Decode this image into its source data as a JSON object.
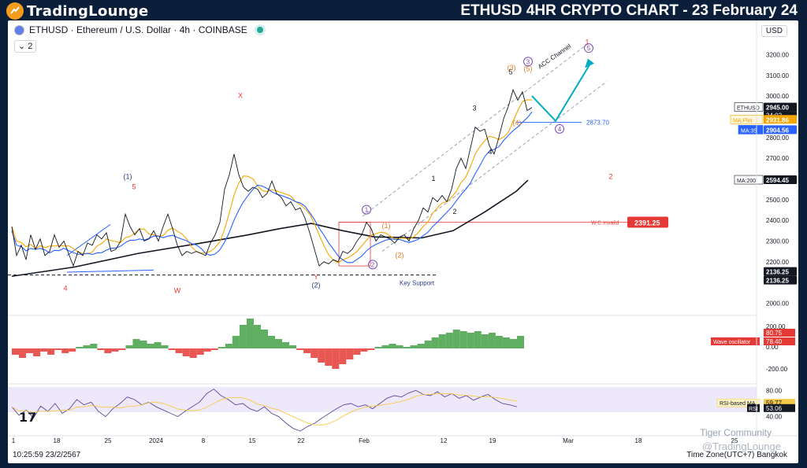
{
  "brand": {
    "name": "TradingLounge"
  },
  "headline": "ETHUSD 4HR CRYPTO CHART - 23 February 24",
  "legend": {
    "symbol": "ETHUSD · Ethereum / U.S. Dollar · 4h · COINBASE",
    "indicator_count": "2"
  },
  "currency_button": "USD",
  "bottom_time": "10:25:59 23/2/2567",
  "timezone": "Time Zone(UTC+7) Bangkok",
  "watermarks": [
    "Tiger Community",
    "@TradingLounge"
  ],
  "chart_data": {
    "type": "line",
    "x_ticks": [
      "1",
      "18",
      "25",
      "2024",
      "8",
      "15",
      "22",
      "Feb",
      "12",
      "19",
      "Mar",
      "18",
      "25"
    ],
    "price_axis": {
      "labels": [
        "3200.00",
        "3100.00",
        "3000.00",
        "2800.00",
        "2700.00",
        "2600.00",
        "2500.00",
        "2400.00",
        "2300.00",
        "2200.00",
        "2000.00"
      ],
      "range": [
        1960,
        3270
      ]
    },
    "price_tags": [
      {
        "name": "ETHUSD",
        "value": "2945.00",
        "sub": "34:02",
        "color": "#131722"
      },
      {
        "name": "MA:Plot",
        "value": "2931.86",
        "color": "#f7a600"
      },
      {
        "name": "MA:35",
        "value": "2904.56",
        "color": "#2962ff"
      },
      {
        "name": "MA:200",
        "value": "2594.45",
        "color": "#131722"
      },
      {
        "name": "",
        "value": "2136.25",
        "color": "#131722"
      },
      {
        "name": "",
        "value": "2136.25",
        "color": "#131722"
      }
    ],
    "series": [
      {
        "name": "MA:Plot",
        "color": "#f7a600"
      },
      {
        "name": "MA:35",
        "color": "#2962ff"
      },
      {
        "name": "MA:200",
        "color": "#131722"
      }
    ],
    "price_path": [
      [
        0,
        2370
      ],
      [
        6,
        2230
      ],
      [
        12,
        2280
      ],
      [
        18,
        2210
      ],
      [
        24,
        2330
      ],
      [
        30,
        2260
      ],
      [
        36,
        2310
      ],
      [
        42,
        2230
      ],
      [
        48,
        2250
      ],
      [
        54,
        2330
      ],
      [
        60,
        2270
      ],
      [
        66,
        2300
      ],
      [
        72,
        2240
      ],
      [
        78,
        2180
      ],
      [
        84,
        2250
      ],
      [
        90,
        2230
      ],
      [
        96,
        2290
      ],
      [
        102,
        2280
      ],
      [
        108,
        2330
      ],
      [
        114,
        2310
      ],
      [
        120,
        2340
      ],
      [
        126,
        2250
      ],
      [
        132,
        2260
      ],
      [
        138,
        2300
      ],
      [
        144,
        2430
      ],
      [
        150,
        2370
      ],
      [
        156,
        2330
      ],
      [
        162,
        2360
      ],
      [
        168,
        2300
      ],
      [
        174,
        2310
      ],
      [
        180,
        2350
      ],
      [
        186,
        2300
      ],
      [
        192,
        2370
      ],
      [
        198,
        2430
      ],
      [
        204,
        2360
      ],
      [
        210,
        2280
      ],
      [
        216,
        2230
      ],
      [
        222,
        2250
      ],
      [
        228,
        2240
      ],
      [
        234,
        2250
      ],
      [
        240,
        2240
      ],
      [
        246,
        2230
      ],
      [
        252,
        2290
      ],
      [
        258,
        2330
      ],
      [
        264,
        2390
      ],
      [
        270,
        2550
      ],
      [
        276,
        2620
      ],
      [
        282,
        2720
      ],
      [
        288,
        2620
      ],
      [
        294,
        2560
      ],
      [
        300,
        2540
      ],
      [
        306,
        2560
      ],
      [
        312,
        2550
      ],
      [
        318,
        2510
      ],
      [
        324,
        2530
      ],
      [
        330,
        2590
      ],
      [
        336,
        2530
      ],
      [
        342,
        2510
      ],
      [
        348,
        2470
      ],
      [
        354,
        2490
      ],
      [
        360,
        2450
      ],
      [
        366,
        2460
      ],
      [
        372,
        2410
      ],
      [
        378,
        2340
      ],
      [
        384,
        2260
      ],
      [
        390,
        2180
      ],
      [
        396,
        2200
      ],
      [
        402,
        2190
      ],
      [
        408,
        2210
      ],
      [
        414,
        2200
      ],
      [
        420,
        2250
      ],
      [
        426,
        2240
      ],
      [
        432,
        2260
      ],
      [
        438,
        2300
      ],
      [
        444,
        2330
      ],
      [
        450,
        2390
      ],
      [
        456,
        2360
      ],
      [
        462,
        2300
      ],
      [
        468,
        2330
      ],
      [
        474,
        2320
      ],
      [
        480,
        2310
      ],
      [
        486,
        2290
      ],
      [
        492,
        2320
      ],
      [
        498,
        2330
      ],
      [
        504,
        2300
      ],
      [
        510,
        2360
      ],
      [
        516,
        2400
      ],
      [
        522,
        2460
      ],
      [
        528,
        2440
      ],
      [
        534,
        2510
      ],
      [
        540,
        2490
      ],
      [
        546,
        2520
      ],
      [
        552,
        2490
      ],
      [
        558,
        2550
      ],
      [
        564,
        2650
      ],
      [
        570,
        2700
      ],
      [
        576,
        2650
      ],
      [
        582,
        2750
      ],
      [
        588,
        2850
      ],
      [
        594,
        2830
      ],
      [
        600,
        2840
      ],
      [
        606,
        2760
      ],
      [
        612,
        2720
      ],
      [
        618,
        2800
      ],
      [
        624,
        2890
      ],
      [
        630,
        2950
      ],
      [
        636,
        3030
      ],
      [
        642,
        2980
      ],
      [
        648,
        3020
      ],
      [
        654,
        2930
      ],
      [
        660,
        2945
      ]
    ],
    "wave_labels": [
      {
        "text": "X",
        "x": 290,
        "p": 2990,
        "color": "#e53935"
      },
      {
        "text": "(1)",
        "x": 147,
        "p": 2600,
        "color": "#2c3e8c"
      },
      {
        "text": "5",
        "x": 155,
        "p": 2550,
        "color": "#e53935"
      },
      {
        "text": "4",
        "x": 68,
        "p": 2060,
        "color": "#e53935"
      },
      {
        "text": "W",
        "x": 210,
        "p": 2050,
        "color": "#e53935"
      },
      {
        "text": "Y",
        "x": 386,
        "p": 2115,
        "color": "#e53935"
      },
      {
        "text": "(2)",
        "x": 386,
        "p": 2075,
        "color": "#2c3e8c"
      },
      {
        "text": "(1)",
        "x": 475,
        "p": 2362,
        "color": "#e67e22"
      },
      {
        "text": "(2)",
        "x": 492,
        "p": 2220,
        "color": "#e67e22"
      },
      {
        "text": "1",
        "x": 535,
        "p": 2590,
        "color": "#131722"
      },
      {
        "text": "2",
        "x": 562,
        "p": 2430,
        "color": "#131722"
      },
      {
        "text": "3",
        "x": 587,
        "p": 2930,
        "color": "#131722"
      },
      {
        "text": "4",
        "x": 607,
        "p": 2720,
        "color": "#131722"
      },
      {
        "text": "5",
        "x": 633,
        "p": 3105,
        "color": "#131722"
      },
      {
        "text": "(3)",
        "x": 634,
        "p": 3125,
        "color": "#e67e22"
      },
      {
        "text": "(4)",
        "x": 641,
        "p": 2860,
        "color": "#e67e22"
      },
      {
        "text": "(5)",
        "x": 655,
        "p": 3120,
        "color": "#e67e22"
      },
      {
        "text": "1",
        "x": 730,
        "p": 3250,
        "color": "#e53935"
      },
      {
        "text": "2",
        "x": 760,
        "p": 2600,
        "color": "#e53935"
      }
    ],
    "circled_labels": [
      {
        "text": "1",
        "x": 450,
        "p": 2440
      },
      {
        "text": "2",
        "x": 458,
        "p": 2175
      },
      {
        "text": "3",
        "x": 655,
        "p": 3155
      },
      {
        "text": "4",
        "x": 695,
        "p": 2830
      },
      {
        "text": "5",
        "x": 732,
        "p": 3220
      }
    ],
    "annotations": {
      "acc_channel": "ACC Channel",
      "level_2873": "2873.70",
      "wc_invalid": "W.C.Invalid",
      "wc_invalid_value": "2391.25",
      "key_support": "Key Support"
    },
    "wave_oscillator": {
      "name": "Wave oscillator",
      "axis_labels": [
        "200.00",
        "0.00",
        "-200.00"
      ],
      "tags": [
        "80.75",
        "78.40"
      ],
      "values": [
        -40,
        -60,
        -30,
        -50,
        -20,
        -40,
        -10,
        -30,
        -20,
        10,
        20,
        30,
        -10,
        -30,
        -20,
        -10,
        20,
        60,
        50,
        30,
        40,
        20,
        -10,
        -30,
        -50,
        -60,
        -40,
        -20,
        -10,
        10,
        30,
        80,
        150,
        190,
        150,
        120,
        80,
        60,
        40,
        20,
        -10,
        -30,
        -60,
        -90,
        -110,
        -130,
        -100,
        -70,
        -40,
        -20,
        -10,
        10,
        20,
        30,
        20,
        10,
        20,
        30,
        50,
        70,
        90,
        100,
        120,
        110,
        100,
        110,
        90,
        100,
        80,
        70,
        60,
        80
      ]
    },
    "rsi": {
      "name": "RSI",
      "ma_name": "RSI-based MA",
      "axis_labels": [
        "80.00",
        "60.00",
        "40.00"
      ],
      "ma_value": "59.77",
      "value": "53.06",
      "values": [
        55,
        42,
        50,
        38,
        56,
        48,
        60,
        45,
        52,
        66,
        58,
        62,
        48,
        40,
        52,
        60,
        70,
        66,
        58,
        62,
        55,
        50,
        45,
        40,
        48,
        55,
        62,
        75,
        82,
        72,
        66,
        58,
        60,
        52,
        48,
        55,
        45,
        40,
        30,
        22,
        18,
        25,
        30,
        38,
        45,
        52,
        58,
        60,
        55,
        58,
        52,
        60,
        68,
        72,
        70,
        76,
        80,
        74,
        72,
        78,
        70,
        75,
        68,
        72,
        65,
        70,
        74,
        66,
        60,
        58,
        55
      ]
    }
  }
}
